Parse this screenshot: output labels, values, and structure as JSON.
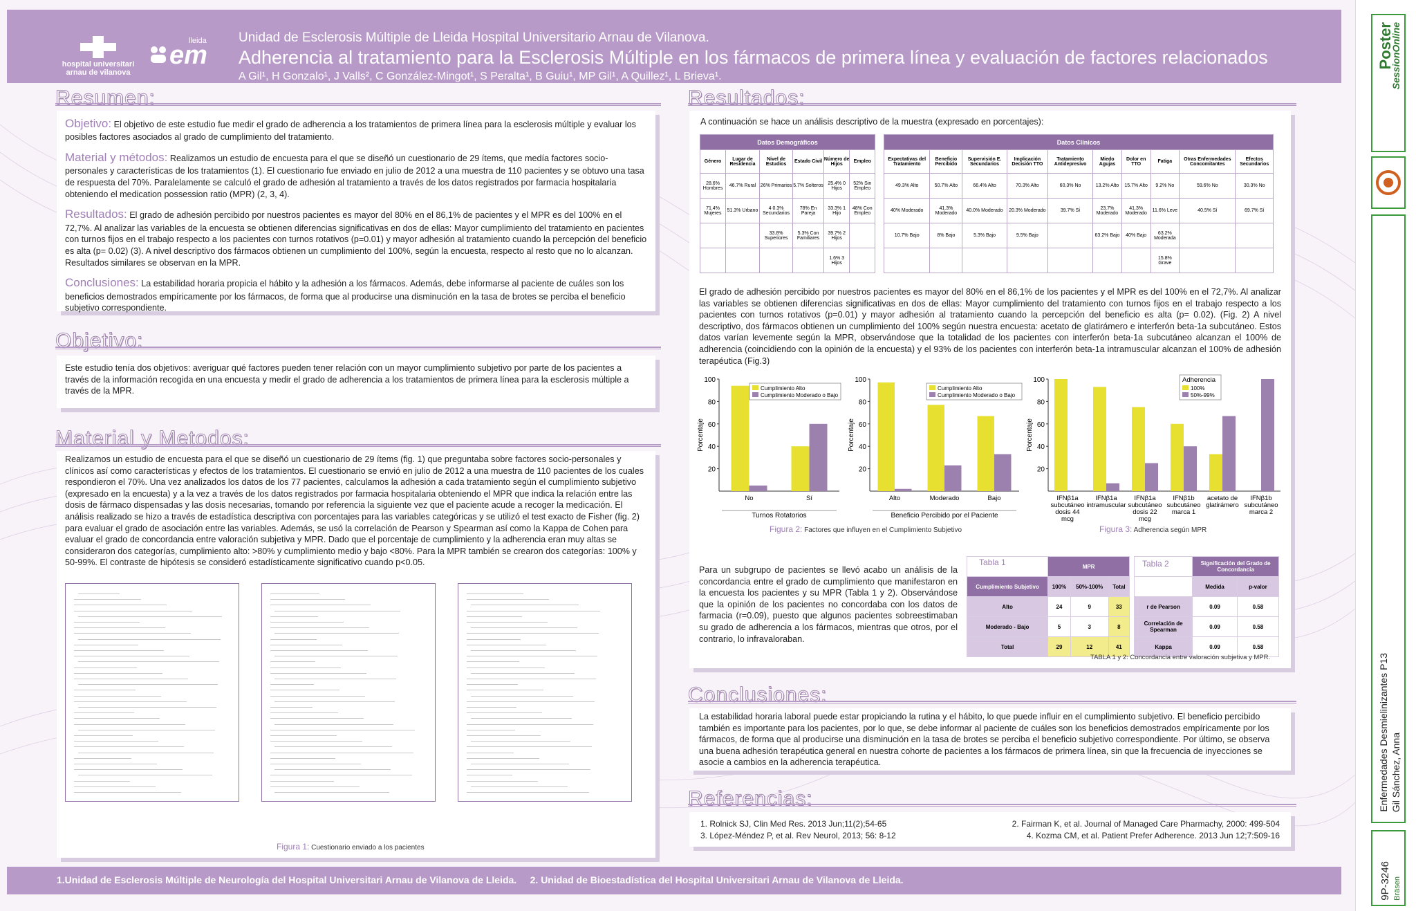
{
  "header": {
    "unit": "Unidad de Esclerosis Múltiple de Lleida Hospital Universitario Arnau de Vilanova.",
    "title": "Adherencia al tratamiento para la Esclerosis Múltiple en los fármacos de primera línea y evaluación de factores relacionados",
    "authors": "A Gil¹, H Gonzalo¹, J Valls², C González-Mingot¹, S Peralta¹, B Guiu¹, MP Gil¹, A Quillez¹, L Brieva¹.",
    "logo1_line1": "hospital universitari",
    "logo1_line2": "arnau de vilanova",
    "logo2_small": "lleida",
    "logo2_big": "em"
  },
  "resumen": {
    "title": "Resumen:",
    "objetivo_label": "Objetivo:",
    "objetivo_text": "El objetivo de este estudio fue medir el grado de adherencia a los tratamientos de primera línea para la esclerosis múltiple y evaluar los posibles factores asociados al grado de cumplimiento del tratamiento.",
    "material_label": "Material y métodos:",
    "material_text": "Realizamos un estudio de encuesta para el que se diseñó un cuestionario de 29 ítems, que medía factores socio-personales y características de los tratamientos (1). El cuestionario fue enviado en julio de 2012 a una muestra de 110 pacientes y se obtuvo una tasa de respuesta del 70%. Paralelamente se calculó el grado de adhesión al tratamiento a través de los datos registrados por farmacia hospitalaria obteniendo el medication possession ratio (MPR) (2, 3, 4).",
    "resultados_label": "Resultados:",
    "resultados_text": "El grado de adhesión percibido por nuestros pacientes es mayor del 80% en el 86,1% de pacientes  y el MPR es del 100% en el 72,7%. Al analizar las variables de la encuesta se obtienen diferencias significativas en dos de ellas: Mayor cumplimiento del tratamiento en pacientes con turnos fijos en el trabajo respecto a los pacientes con turnos rotativos (p=0.01) y mayor adhesión al tratamiento cuando la percepción del beneficio es alta (p= 0.02) (3). A nivel descriptivo dos fármacos obtienen un cumplimiento del 100%, según la encuesta, respecto al resto que no lo alcanzan. Resultados similares se observan en la MPR.",
    "conclusiones_label": "Conclusiones:",
    "conclusiones_text": "La estabilidad horaria propicia el hábito y la adhesión a los fármacos. Además, debe informarse al paciente de cuáles son los beneficios demostrados empíricamente por los fármacos, de forma que al producirse una disminución en la tasa de brotes se perciba el beneficio subjetivo correspondiente."
  },
  "objetivo": {
    "title": "Objetivo:",
    "text": "Este estudio tenía dos objetivos: averiguar qué factores pueden tener relación con un mayor cumplimiento subjetivo por parte de los pacientes a través de la información recogida en una encuesta y medir el grado de adherencia a los tratamientos de primera línea para la esclerosis múltiple a través de la MPR."
  },
  "metodos": {
    "title": "Material y Metodos:",
    "text": "Realizamos un estudio de encuesta para el que se diseñó un cuestionario de 29 ítems (fig. 1) que preguntaba sobre factores socio-personales y clínicos así como características  y efectos de los tratamientos. El cuestionario se envió en julio de 2012 a  una muestra de 110 pacientes de los cuales respondieron el 70%. Una vez analizados los datos de los 77 pacientes, calculamos la adhesión a cada tratamiento según el cumplimiento subjetivo (expresado en la encuesta) y a la vez a través de los datos registrados por farmacia hospitalaria obteniendo el MPR que indica la relación entre las dosis de fármaco dispensadas y las dosis necesarias, tomando por referencia la siguiente vez que el paciente acude a recoger la medicación. El análisis realizado se hizo a través de estadística descriptiva con porcentajes para las variables categóricas y se utilizó el test exacto de Fisher (fig. 2) para evaluar el grado de asociación entre las variables. Además, se usó la correlación de Pearson y Spearman así como la Kappa de Cohen para evaluar el grado de concordancia entre valoración subjetiva y MPR. Dado que el porcentaje de cumplimiento y la adherencia eran muy altas se consideraron dos categorías, cumplimiento alto: >80% y cumplimiento medio y bajo <80%. Para la MPR también se crearon dos categorías: 100% y 50-99%. El contraste de hipótesis se consideró estadísticamente significativo cuando p<0.05.",
    "fig1_label": "Figura 1:",
    "fig1_caption": "Cuestionario enviado a los pacientes"
  },
  "resultados": {
    "title": "Resultados:",
    "intro": "A continuación se hace un análisis descriptivo de la muestra (expresado en porcentajes):",
    "demo_group": "Datos Demográficos",
    "clin_group": "Datos Clínicos",
    "demo_headers": [
      "Género",
      "Lugar de Residencia",
      "Nivel de Estudios",
      "Estado Civil",
      "Número de Hijos",
      "Empleo"
    ],
    "demo_rows": [
      [
        "28.6% Hombres",
        "46.7% Rural",
        "26% Primarios",
        "5.7% Solteros",
        "25.4% 0 Hijos",
        "52% Sin Empleo"
      ],
      [
        "71.4% Mujeres",
        "51.3% Urbano",
        "4 0.3% Secundarios",
        "78% En Pareja",
        "33.3% 1 Hijo",
        "48% Con Empleo"
      ],
      [
        "",
        "",
        "33.8% Superiores",
        "5.3% Con Familiares",
        "39.7% 2 Hijos",
        ""
      ],
      [
        "",
        "",
        "",
        "",
        "1.6% 3 Hijos",
        ""
      ]
    ],
    "clin_headers": [
      "Expectativas del Tratamiento",
      "Beneficio Percibido",
      "Supervisión E. Secundarios",
      "Implicación Decisión TTO",
      "Tratamiento Antidepresivo",
      "Miedo Agujas",
      "Dolor en TTO",
      "Fatiga",
      "Otras Enfermedades Concomitantes",
      "Efectos Secundarios"
    ],
    "clin_rows": [
      [
        "49.3% Alto",
        "50.7% Alto",
        "66.4% Alto",
        "70.3% Alto",
        "60.3% No",
        "13.2% Alto",
        "15.7% Alto",
        "9.2% No",
        "59.6% No",
        "30.3% No"
      ],
      [
        "40% Moderado",
        "41.3% Moderado",
        "40.0% Moderado",
        "20.3% Moderado",
        "39.7% Sí",
        "23.7% Moderado",
        "41.3% Moderado",
        "11.6% Leve",
        "40.5% Sí",
        "69.7% Sí"
      ],
      [
        "10.7% Bajo",
        "8% Bajo",
        "5.3% Bajo",
        "9.5% Bajo",
        "",
        "63.2% Bajo",
        "40% Bajo",
        "63.2% Moderada",
        "",
        ""
      ],
      [
        "",
        "",
        "",
        "",
        "",
        "",
        "",
        "15.8% Grave",
        "",
        ""
      ]
    ],
    "para1": "El grado de adhesión percibido por nuestros pacientes es mayor del 80% en el 86,1% de los pacientes  y el MPR es del 100% en el 72,7%. Al analizar las variables se obtienen diferencias significativas en dos de ellas: Mayor cumplimiento del tratamiento con turnos fijos en el trabajo respecto a los pacientes con turnos rotativos (p=0.01) y mayor adhesión al tratamiento cuando la percepción del beneficio es alta (p= 0.02). (Fig. 2) A nivel descriptivo, dos fármacos obtienen un cumplimiento del 100% según nuestra encuesta: acetato de glatirámero e interferón beta-1a subcutáneo. Estos datos varían levemente según la MPR, observándose que la totalidad de los pacientes con interferón beta-1a subcutáneo alcanzan el 100% de adherencia (coincidiendo con la opinión de la encuesta) y el 93% de los pacientes con interferón beta-1a intramuscular alcanzan el 100% de adhesión terapéutica (Fig.3)",
    "fig2_label": "Figura 2:",
    "fig2_caption": "Factores que influyen en el Cumplimiento Subjetivo",
    "fig3_label": "Figura 3:",
    "fig3_caption": "Adherencia según MPR",
    "para2": "Para un subgrupo de pacientes se llevó acabo un análisis de la concordancia entre el grado de cumplimiento que manifestaron en la encuesta los pacientes y su MPR (Tabla 1 y 2). Observándose que la opinión de los pacientes no concordaba con los datos de farmacia (r=0.09), puesto que algunos pacientes sobreestimaban su grado de adherencia a los fármacos, mientras que otros, por el contrario, lo infravaloraban.",
    "tabla1_name": "Tabla 1",
    "tabla1_mpr": "MPR",
    "tabla1_rowhead": "Cumplimiento Subjetivo",
    "tabla1_cols": [
      "100%",
      "50%-100%",
      "Total"
    ],
    "tabla1_rows": [
      {
        "label": "Alto",
        "values": [
          "24",
          "9",
          "33"
        ]
      },
      {
        "label": "Moderado - Bajo",
        "values": [
          "5",
          "3",
          "8"
        ]
      },
      {
        "label": "Total",
        "values": [
          "29",
          "12",
          "41"
        ]
      }
    ],
    "tabla2_name": "Tabla 2",
    "tabla2_header": "Significación del Grado de Concordancia",
    "tabla2_cols": [
      "Medida",
      "p-valor"
    ],
    "tabla2_rows": [
      {
        "label": "r de Pearson",
        "values": [
          "0.09",
          "0.58"
        ]
      },
      {
        "label": "Correlación de Spearman",
        "values": [
          "0.09",
          "0.58"
        ]
      },
      {
        "label": "Kappa",
        "values": [
          "0.09",
          "0.58"
        ]
      }
    ],
    "tables_caption": "TABLA 1 y 2: Concordancia entre valoración subjetiva y MPR."
  },
  "conclusiones": {
    "title": "Conclusiones:",
    "text": "La estabilidad horaria laboral puede estar propiciando la rutina y el hábito, lo que puede influir en el cumplimiento subjetivo. El beneficio percibido también es importante para los pacientes, por lo que, se debe informar al paciente de cuáles son los beneficios demostrados empíricamente por los fármacos, de forma que al producirse una disminución en la tasa de brotes se perciba el beneficio subjetivo correspondiente. Por último, se observa una buena adhesión terapéutica general en nuestra cohorte de pacientes a los fármacos de primera línea, sin que la frecuencia de inyecciones se asocie a cambios en la adherencia terapéutica."
  },
  "referencias": {
    "title": "Referencias:",
    "ref1": "1. Rolnick SJ, Clin Med Res. 2013 Jun;11(2);54-65",
    "ref2": "2. Fairman K, et al. Journal of Managed Care Pharmachy, 2000: 499-504",
    "ref3": "3. López-Méndez P, et al. Rev Neurol, 2013; 56: 8-12",
    "ref4": "4. Kozma CM, et al. Patient Prefer Adherence. 2013 Jun 12;7:509-16"
  },
  "footer": {
    "text1": "1.Unidad de Esclerosis Múltiple de Neurología del Hospital Universitari Arnau de Vilanova de Lleida.",
    "text2": "2. Unidad de Bioestadística del Hospital Universitari Arnau de Vilanova de Lleida."
  },
  "side": {
    "brand1": "Poster",
    "brand2": "SessionOnline",
    "session": "Enfermedades Desmielinizantes P13",
    "author": "Gil Sánchez, Anna",
    "code": "9P-3246",
    "journal": "Bräsen"
  },
  "colors": {
    "purple": "#b89ac8",
    "dark_purple": "#8f6fa4",
    "series_yellow": "#e8e030",
    "series_purple": "#9c80ae",
    "green": "#3a9b3a"
  },
  "chart_data": [
    {
      "type": "bar",
      "ylabel": "Porcentaje",
      "xlabel": "Turnos Rotatorios",
      "categories": [
        "No",
        "Sí"
      ],
      "ylim": [
        0,
        100
      ],
      "yticks": [
        20,
        40,
        60,
        80,
        100
      ],
      "legend": "top-right",
      "series": [
        {
          "name": "Cumplimiento Alto",
          "values": [
            94,
            40
          ]
        },
        {
          "name": "Cumplimiento Moderado o Bajo",
          "values": [
            5,
            60
          ]
        }
      ]
    },
    {
      "type": "bar",
      "ylabel": "Porcentaje",
      "xlabel": "Beneficio Percibido por el Paciente",
      "categories": [
        "Alto",
        "Moderado",
        "Bajo"
      ],
      "ylim": [
        0,
        100
      ],
      "yticks": [
        20,
        40,
        60,
        80,
        100
      ],
      "legend": "top-right",
      "series": [
        {
          "name": "Cumplimiento Alto",
          "values": [
            97,
            77,
            67
          ]
        },
        {
          "name": "Cumplimiento Moderado o Bajo",
          "values": [
            2,
            23,
            33
          ]
        }
      ]
    },
    {
      "type": "bar",
      "ylabel": "Porcentaje",
      "xlabel": "",
      "legend_title": "Adherencia",
      "categories": [
        "IFNβ1a subcutáneo dosis 44 mcg",
        "IFNβ1a intramuscular",
        "IFNβ1a subcutáneo dosis 22 mcg",
        "IFNβ1b subcutáneo marca 1",
        "acetato de glatirámero",
        "IFNβ1b subcutáneo marca 2"
      ],
      "ylim": [
        0,
        100
      ],
      "yticks": [
        20,
        40,
        60,
        80,
        100
      ],
      "legend": "top-right",
      "series": [
        {
          "name": "100%",
          "values": [
            100,
            93,
            75,
            60,
            33,
            0
          ]
        },
        {
          "name": "50%-99%",
          "values": [
            0,
            7,
            25,
            40,
            67,
            100
          ]
        }
      ]
    }
  ]
}
